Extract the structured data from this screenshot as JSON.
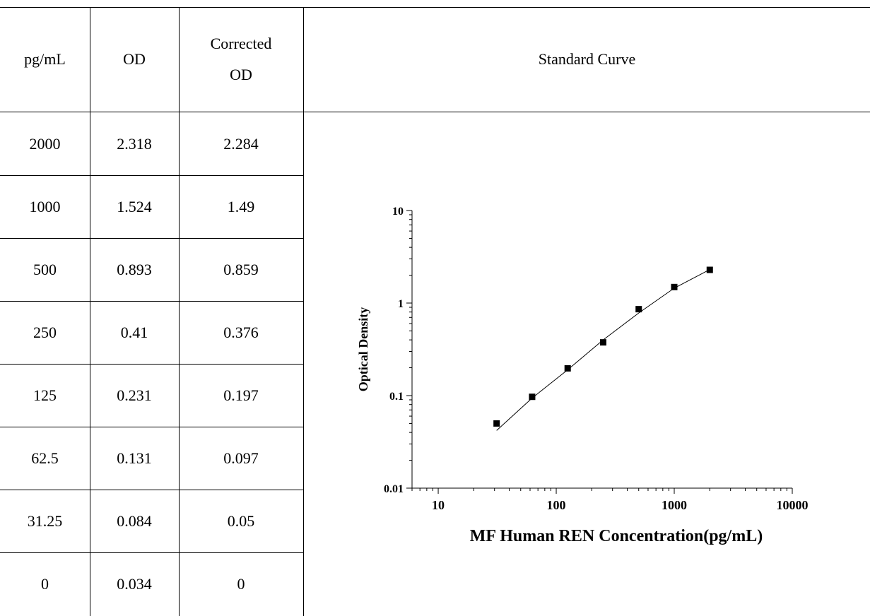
{
  "table": {
    "headers": {
      "conc": "pg/mL",
      "od": "OD",
      "corr_line1": "Corrected",
      "corr_line2": "OD",
      "curve": "Standard Curve"
    },
    "rows": [
      {
        "conc": "2000",
        "od": "2.318",
        "corr": "2.284"
      },
      {
        "conc": "1000",
        "od": "1.524",
        "corr": "1.49"
      },
      {
        "conc": "500",
        "od": "0.893",
        "corr": "0.859"
      },
      {
        "conc": "250",
        "od": "0.41",
        "corr": "0.376"
      },
      {
        "conc": "125",
        "od": "0.231",
        "corr": "0.197"
      },
      {
        "conc": "62.5",
        "od": "0.131",
        "corr": "0.097"
      },
      {
        "conc": "31.25",
        "od": "0.084",
        "corr": "0.05"
      },
      {
        "conc": "0",
        "od": "0.034",
        "corr": "0"
      }
    ]
  },
  "chart_data": {
    "type": "scatter",
    "title": "",
    "xlabel": "MF Human REN Concentration(pg/mL)",
    "ylabel": "Optical Density",
    "x_scale": "log",
    "y_scale": "log",
    "xlim": [
      6,
      10000
    ],
    "ylim": [
      0.01,
      10
    ],
    "x_ticks": [
      10,
      100,
      1000,
      10000
    ],
    "x_tick_labels": [
      "10",
      "100",
      "1000",
      "10000"
    ],
    "y_ticks": [
      0.01,
      0.1,
      1,
      10
    ],
    "y_tick_labels": [
      "0.01",
      "0.1",
      "1",
      "10"
    ],
    "grid": false,
    "series": [
      {
        "x": [
          31.25,
          62.5,
          125,
          250,
          500,
          1000,
          2000
        ],
        "y": [
          0.05,
          0.097,
          0.197,
          0.376,
          0.859,
          1.49,
          2.284
        ]
      }
    ],
    "fit_line": {
      "x": [
        31.25,
        62.5,
        125,
        250,
        500,
        1000,
        2000
      ],
      "y": [
        0.042,
        0.094,
        0.19,
        0.4,
        0.78,
        1.45,
        2.3
      ]
    },
    "colors": {
      "marker": "#000000",
      "line": "#000000"
    }
  }
}
